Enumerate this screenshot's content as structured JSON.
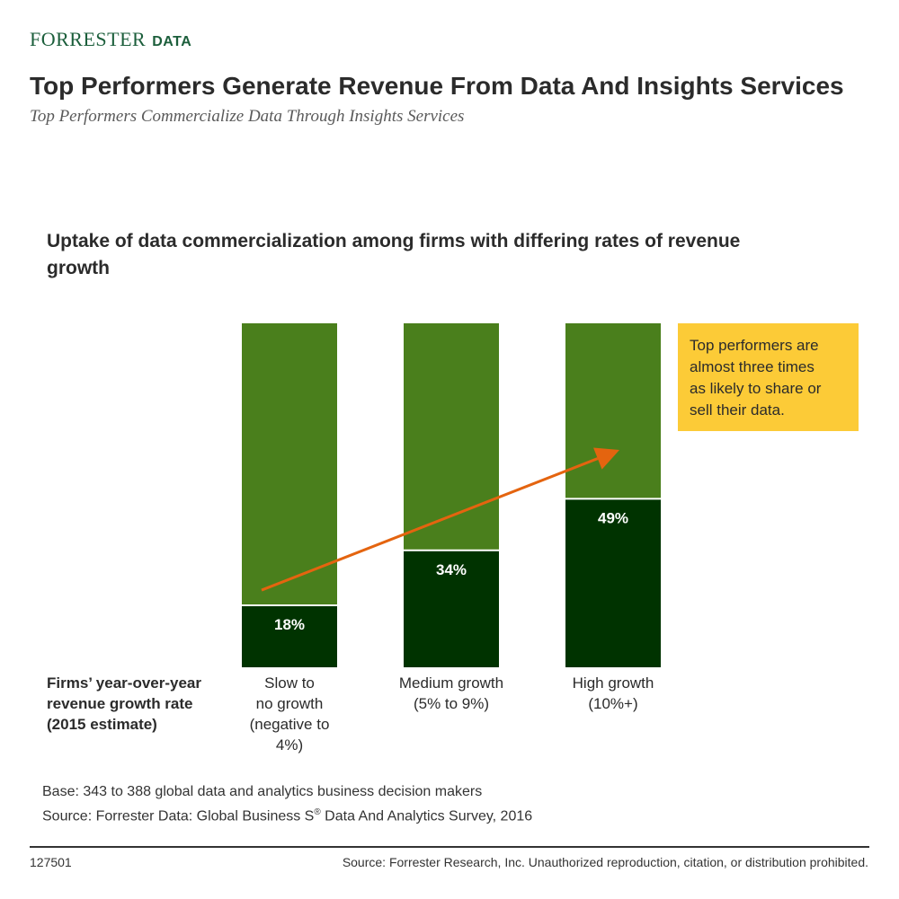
{
  "header": {
    "brand": "FORRESTER",
    "brand_suffix": "DATA",
    "title": "Top Performers Generate Revenue From Data And Insights Services",
    "subtitle": "Top Performers Commercialize Data Through Insights Services"
  },
  "chart_data": {
    "type": "bar",
    "title": "Uptake of data commercialization among firms with differing rates of revenue growth",
    "xlabel": "Firms’ year-over-year revenue growth rate (2015 estimate)",
    "ylabel": "",
    "ylim": [
      0,
      100
    ],
    "categories": [
      "Slow to no growth (negative to 4%)",
      "Medium growth (5% to 9%)",
      "High growth (10%+)"
    ],
    "category_lines": [
      [
        "Slow to",
        "no growth",
        "(negative to",
        "4%)"
      ],
      [
        "Medium growth",
        "(5% to 9%)"
      ],
      [
        "High growth",
        "(10%+)"
      ]
    ],
    "values": [
      18,
      34,
      49
    ],
    "value_labels": [
      "18%",
      "34%",
      "49%"
    ],
    "stacked": true,
    "colors": {
      "value": "#003300",
      "remainder": "#4a7f1c",
      "arrow": "#e4640f",
      "callout": "#fccb37"
    },
    "annotation": "Top performers are almost three times as likely to share or sell their data.",
    "annotation_lines": [
      "Top performers are",
      "almost three times",
      "as likely to share or",
      "sell their data."
    ],
    "legend": "none",
    "grid": false
  },
  "notes": {
    "base": "Base: 343 to 388 global data and analytics business decision makers",
    "source_prefix": "Source: Forrester Data: Global Business S",
    "source_sup": "®",
    "source_suffix": " Data And Analytics Survey, 2016"
  },
  "footer": {
    "id": "127501",
    "copyright": "Source: Forrester Research, Inc. Unauthorized reproduction, citation, or distribution prohibited."
  }
}
